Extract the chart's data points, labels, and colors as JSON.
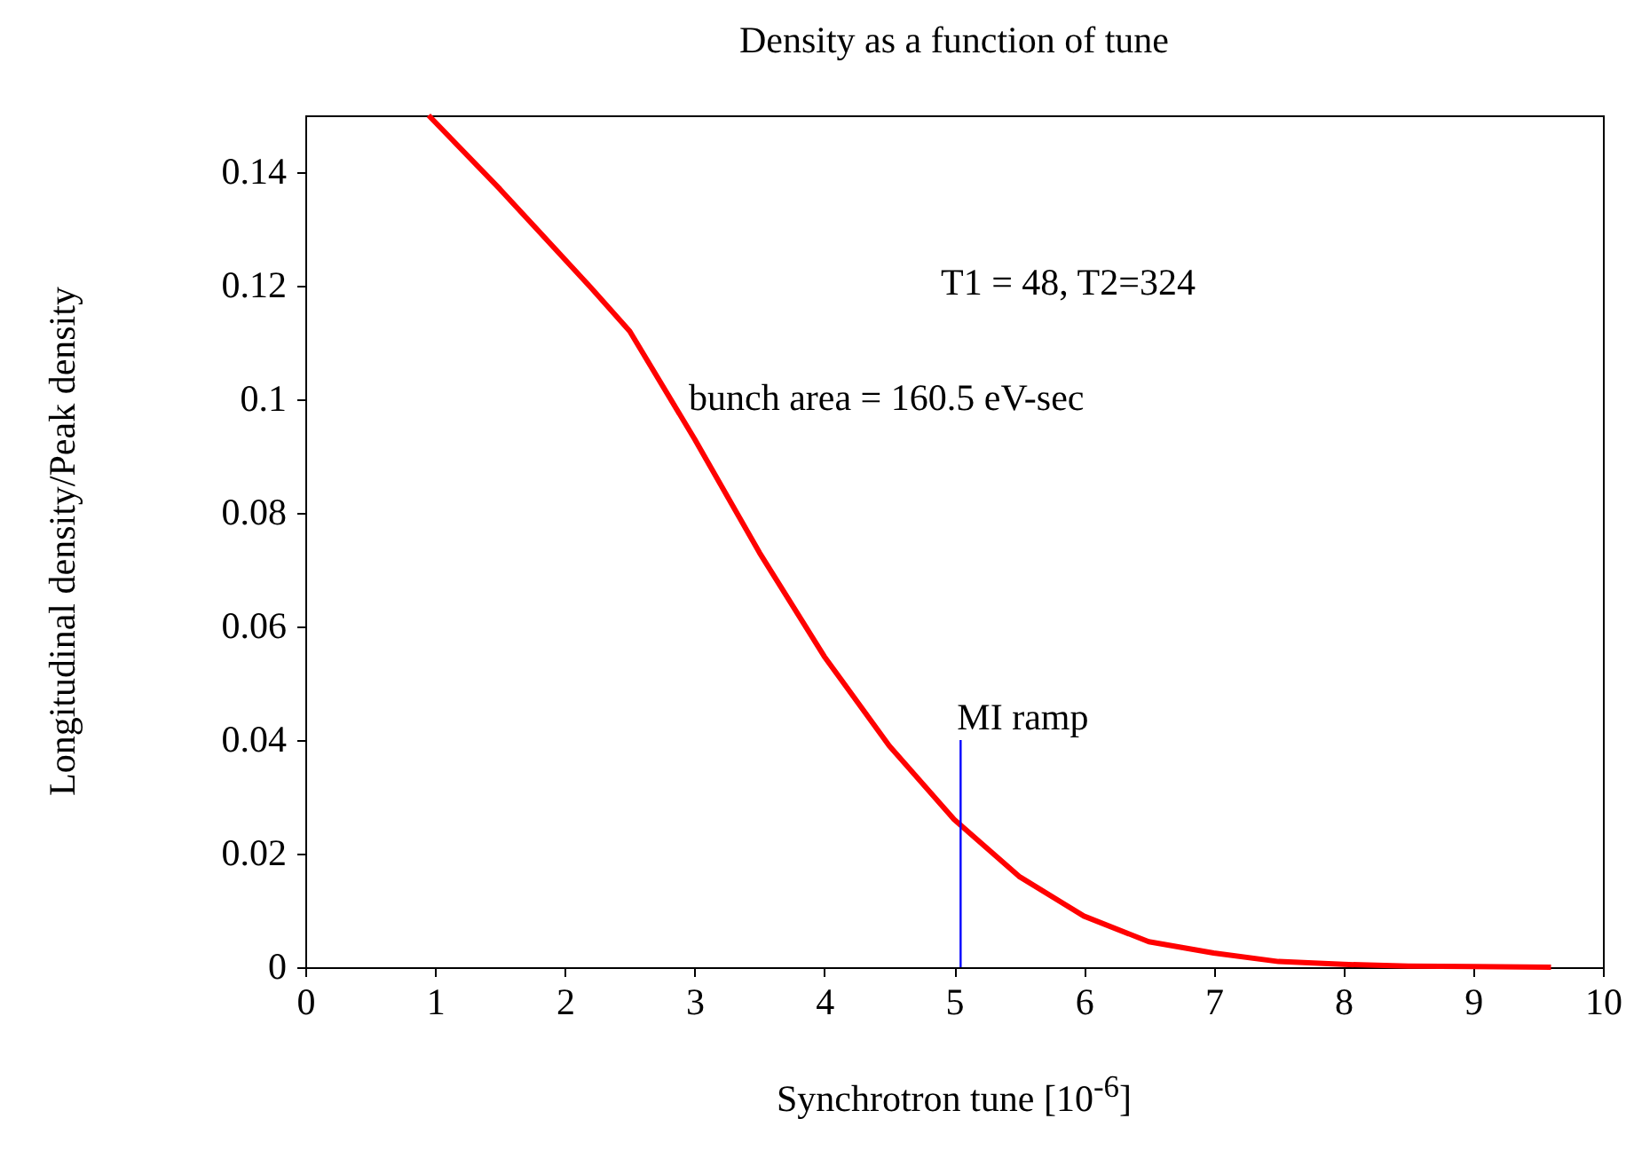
{
  "chart_data": {
    "type": "line",
    "title": "Density as a function of tune",
    "xlabel": "Synchrotron tune [10$^{-6}$]",
    "ylabel": "Longitudinal density/Peak density",
    "xlim": [
      0,
      10
    ],
    "xticks": [
      0,
      1,
      2,
      3,
      4,
      5,
      6,
      7,
      8,
      9,
      10
    ],
    "ylim": [
      0,
      0.15
    ],
    "yticks": [
      0,
      0.02,
      0.04,
      0.06,
      0.08,
      0.1,
      0.12,
      0.14
    ],
    "grid": false,
    "annotations": [
      "T1 = 48, T2=324",
      "bunch area = 160.5 eV-sec"
    ],
    "series": [
      {
        "color": "#ff0000",
        "x": [
          0.95,
          1.5,
          2.2,
          2.5,
          3,
          3.5,
          4,
          4.5,
          5,
          5.5,
          6,
          6.5,
          7,
          7.5,
          8,
          8.5,
          9,
          9.6
        ],
        "values": [
          0.15,
          0.137,
          0.1197,
          0.112,
          0.093,
          0.073,
          0.0547,
          0.039,
          0.026,
          0.016,
          0.009,
          0.0045,
          0.0025,
          0.001,
          0.0005,
          0.0002,
          0.0001,
          0
        ]
      },
      {
        "name": "MI ramp",
        "color": "#0000ff",
        "x": [
          5.05,
          5.05
        ],
        "values": [
          0,
          0.04
        ]
      }
    ]
  }
}
